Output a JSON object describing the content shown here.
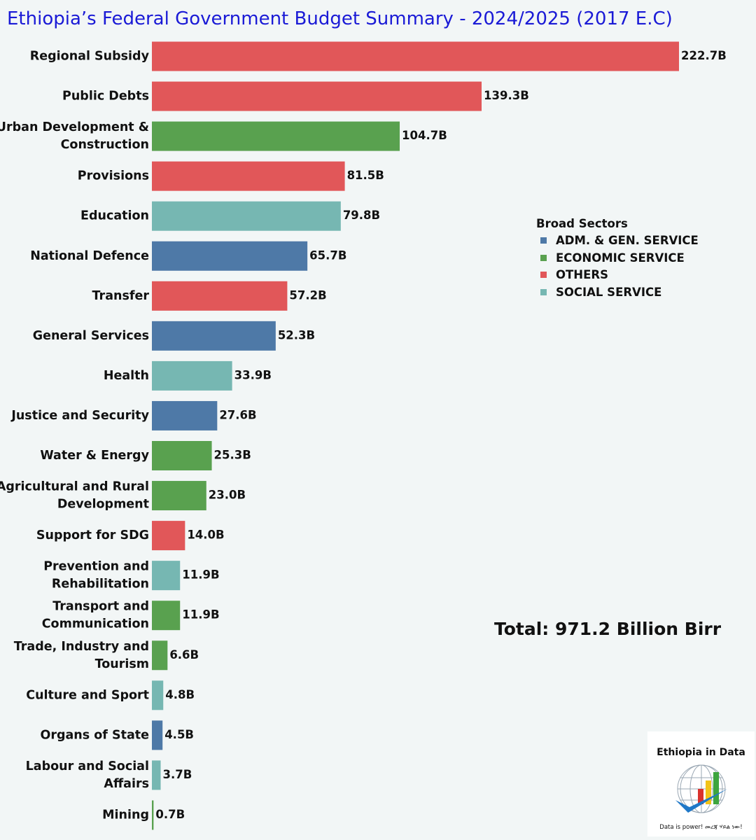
{
  "colors": {
    "adm": "#4e79a7",
    "economic": "#59a14f",
    "others": "#e15759",
    "social": "#76b7b2"
  },
  "chart_data": {
    "type": "bar",
    "orientation": "horizontal",
    "title": "Ethiopia’s Federal Government Budget Summary - 2024/2025 (2017 E.C)",
    "unit": "Billion Birr",
    "xlim": [
      0,
      222.7
    ],
    "bars": [
      {
        "category": [
          "Regional Subsidy"
        ],
        "value": 222.7,
        "label": "222.7B",
        "sector": "others"
      },
      {
        "category": [
          "Public Debts"
        ],
        "value": 139.3,
        "label": "139.3B",
        "sector": "others"
      },
      {
        "category": [
          "Urban Development &",
          "Construction"
        ],
        "value": 104.7,
        "label": "104.7B",
        "sector": "economic"
      },
      {
        "category": [
          "Provisions"
        ],
        "value": 81.5,
        "label": "81.5B",
        "sector": "others"
      },
      {
        "category": [
          "Education"
        ],
        "value": 79.8,
        "label": "79.8B",
        "sector": "social"
      },
      {
        "category": [
          "National Defence"
        ],
        "value": 65.7,
        "label": "65.7B",
        "sector": "adm"
      },
      {
        "category": [
          "Transfer"
        ],
        "value": 57.2,
        "label": "57.2B",
        "sector": "others"
      },
      {
        "category": [
          "General Services"
        ],
        "value": 52.3,
        "label": "52.3B",
        "sector": "adm"
      },
      {
        "category": [
          "Health"
        ],
        "value": 33.9,
        "label": "33.9B",
        "sector": "social"
      },
      {
        "category": [
          "Justice and Security"
        ],
        "value": 27.6,
        "label": "27.6B",
        "sector": "adm"
      },
      {
        "category": [
          "Water & Energy"
        ],
        "value": 25.3,
        "label": "25.3B",
        "sector": "economic"
      },
      {
        "category": [
          "Agricultural and Rural",
          "Development"
        ],
        "value": 23.0,
        "label": "23.0B",
        "sector": "economic"
      },
      {
        "category": [
          "Support for SDG"
        ],
        "value": 14.0,
        "label": "14.0B",
        "sector": "others"
      },
      {
        "category": [
          "Prevention and",
          "Rehabilitation"
        ],
        "value": 11.9,
        "label": "11.9B",
        "sector": "social"
      },
      {
        "category": [
          "Transport and",
          "Communication"
        ],
        "value": 11.9,
        "label": "11.9B",
        "sector": "economic"
      },
      {
        "category": [
          "Trade, Industry and",
          "Tourism"
        ],
        "value": 6.6,
        "label": "6.6B",
        "sector": "economic"
      },
      {
        "category": [
          "Culture and Sport"
        ],
        "value": 4.8,
        "label": "4.8B",
        "sector": "social"
      },
      {
        "category": [
          "Organs of State"
        ],
        "value": 4.5,
        "label": "4.5B",
        "sector": "adm"
      },
      {
        "category": [
          "Labour and Social",
          "Affairs"
        ],
        "value": 3.7,
        "label": "3.7B",
        "sector": "social"
      },
      {
        "category": [
          "Mining"
        ],
        "value": 0.7,
        "label": "0.7B",
        "sector": "economic"
      }
    ],
    "legend": {
      "title": "Broad Sectors",
      "items": [
        {
          "key": "adm",
          "label": "ADM. & GEN. SERVICE"
        },
        {
          "key": "economic",
          "label": "ECONOMIC SERVICE"
        },
        {
          "key": "others",
          "label": "OTHERS"
        },
        {
          "key": "social",
          "label": "SOCIAL SERVICE"
        }
      ]
    },
    "annotation": "Total: 971.2 Billion Birr"
  },
  "logo": {
    "title": "Ethiopia in Data",
    "tagline": "Data is power! መረጃ ሃይል ነው!"
  }
}
